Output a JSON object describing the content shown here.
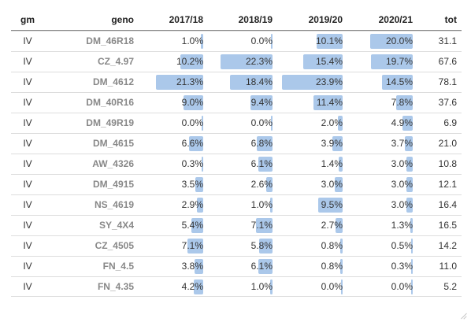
{
  "columns": [
    "gm",
    "geno",
    "2017/18",
    "2018/19",
    "2019/20",
    "2020/21",
    "tot"
  ],
  "colors": {
    "bar": "#abc8ea",
    "geno_text": "#888888"
  },
  "rows": [
    {
      "gm": "IV",
      "geno": "DM_46R18",
      "y1": "1.0%",
      "y2": "0.0%",
      "y3": "10.1%",
      "y4": "20.0%",
      "tot": "31.1",
      "p": [
        1.0,
        0.0,
        10.1,
        20.0
      ]
    },
    {
      "gm": "IV",
      "geno": "CZ_4.97",
      "y1": "10.2%",
      "y2": "22.3%",
      "y3": "15.4%",
      "y4": "19.7%",
      "tot": "67.6",
      "p": [
        10.2,
        22.3,
        15.4,
        19.7
      ]
    },
    {
      "gm": "IV",
      "geno": "DM_4612",
      "y1": "21.3%",
      "y2": "18.4%",
      "y3": "23.9%",
      "y4": "14.5%",
      "tot": "78.1",
      "p": [
        21.3,
        18.4,
        23.9,
        14.5
      ]
    },
    {
      "gm": "IV",
      "geno": "DM_40R16",
      "y1": "9.0%",
      "y2": "9.4%",
      "y3": "11.4%",
      "y4": "7.8%",
      "tot": "37.6",
      "p": [
        9.0,
        9.4,
        11.4,
        7.8
      ]
    },
    {
      "gm": "IV",
      "geno": "DM_49R19",
      "y1": "0.0%",
      "y2": "0.0%",
      "y3": "2.0%",
      "y4": "4.9%",
      "tot": "6.9",
      "p": [
        0.0,
        0.0,
        2.0,
        4.9
      ]
    },
    {
      "gm": "IV",
      "geno": "DM_4615",
      "y1": "6.6%",
      "y2": "6.8%",
      "y3": "3.9%",
      "y4": "3.7%",
      "tot": "21.0",
      "p": [
        6.6,
        6.8,
        3.9,
        3.7
      ]
    },
    {
      "gm": "IV",
      "geno": "AW_4326",
      "y1": "0.3%",
      "y2": "6.1%",
      "y3": "1.4%",
      "y4": "3.0%",
      "tot": "10.8",
      "p": [
        0.3,
        6.1,
        1.4,
        3.0
      ]
    },
    {
      "gm": "IV",
      "geno": "DM_4915",
      "y1": "3.5%",
      "y2": "2.6%",
      "y3": "3.0%",
      "y4": "3.0%",
      "tot": "12.1",
      "p": [
        3.5,
        2.6,
        3.0,
        3.0
      ]
    },
    {
      "gm": "IV",
      "geno": "NS_4619",
      "y1": "2.9%",
      "y2": "1.0%",
      "y3": "9.5%",
      "y4": "3.0%",
      "tot": "16.4",
      "p": [
        2.9,
        1.0,
        9.5,
        3.0
      ]
    },
    {
      "gm": "IV",
      "geno": "SY_4X4",
      "y1": "5.4%",
      "y2": "7.1%",
      "y3": "2.7%",
      "y4": "1.3%",
      "tot": "16.5",
      "p": [
        5.4,
        7.1,
        2.7,
        1.3
      ]
    },
    {
      "gm": "IV",
      "geno": "CZ_4505",
      "y1": "7.1%",
      "y2": "5.8%",
      "y3": "0.8%",
      "y4": "0.5%",
      "tot": "14.2",
      "p": [
        7.1,
        5.8,
        0.8,
        0.5
      ]
    },
    {
      "gm": "IV",
      "geno": "FN_4.5",
      "y1": "3.8%",
      "y2": "6.1%",
      "y3": "0.8%",
      "y4": "0.3%",
      "tot": "11.0",
      "p": [
        3.8,
        6.1,
        0.8,
        0.3
      ]
    },
    {
      "gm": "IV",
      "geno": "FN_4.35",
      "y1": "4.2%",
      "y2": "1.0%",
      "y3": "0.0%",
      "y4": "0.0%",
      "tot": "5.2",
      "p": [
        4.2,
        1.0,
        0.0,
        0.0
      ]
    }
  ]
}
